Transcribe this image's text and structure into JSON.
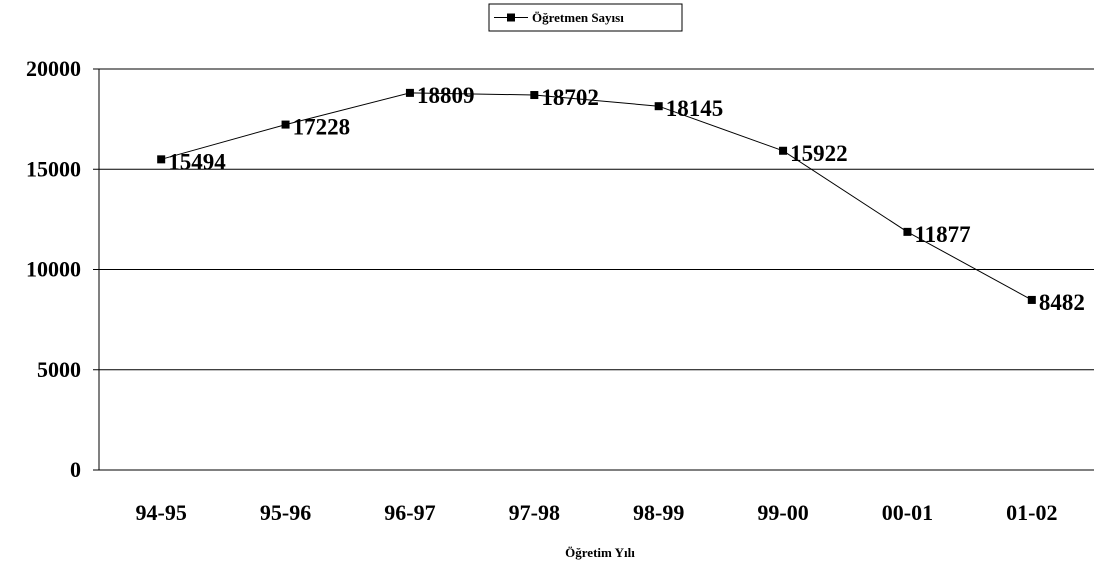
{
  "chart_data": {
    "type": "line",
    "categories": [
      "94-95",
      "95-96",
      "96-97",
      "97-98",
      "98-99",
      "99-00",
      "00-01",
      "01-02"
    ],
    "series": [
      {
        "name": "Öğretmen Sayısı",
        "values": [
          15494,
          17228,
          18809,
          18702,
          18145,
          15922,
          11877,
          8482
        ]
      }
    ],
    "data_labels": [
      "15494",
      "17228",
      "18809",
      "18702",
      "18145",
      "15922",
      "11877",
      "8482"
    ],
    "xlabel": "Öğretim Yılı",
    "ylabel": "",
    "ylim": [
      0,
      20000
    ],
    "yticks": [
      "0",
      "5000",
      "10000",
      "15000",
      "20000"
    ],
    "grid": true,
    "legend_position": "top-center",
    "line_color": "#000000",
    "marker": "square"
  }
}
